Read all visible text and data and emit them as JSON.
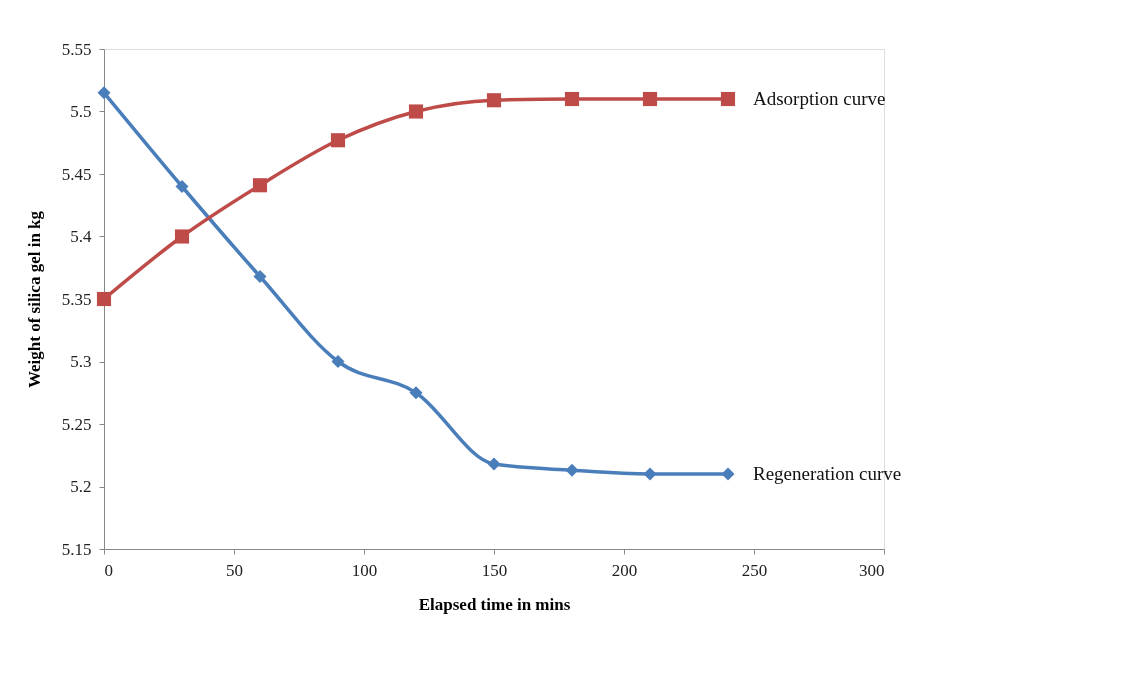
{
  "chart_data": {
    "type": "line",
    "xlabel": "Elapsed time in mins",
    "ylabel": "Weight of silica gel in kg",
    "x": [
      0,
      30,
      60,
      90,
      120,
      150,
      180,
      210,
      240
    ],
    "series": [
      {
        "name": "Regeneration curve",
        "color": "#4a7ebb",
        "marker": "diamond",
        "values": [
          5.515,
          5.44,
          5.368,
          5.3,
          5.275,
          5.218,
          5.213,
          5.21,
          5.21
        ]
      },
      {
        "name": "Adsorption curve",
        "color": "#be4b48",
        "marker": "square",
        "values": [
          5.35,
          5.4,
          5.441,
          5.477,
          5.5,
          5.509,
          5.51,
          5.51,
          5.51
        ]
      }
    ],
    "xlim": [
      0,
      300
    ],
    "xticks": [
      0,
      50,
      100,
      150,
      200,
      250,
      300
    ],
    "ylim": [
      5.15,
      5.55
    ],
    "yticks": [
      5.15,
      5.2,
      5.25,
      5.3,
      5.35,
      5.4,
      5.45,
      5.5,
      5.55
    ],
    "grid": false,
    "legend": false,
    "line_style": "solid"
  }
}
